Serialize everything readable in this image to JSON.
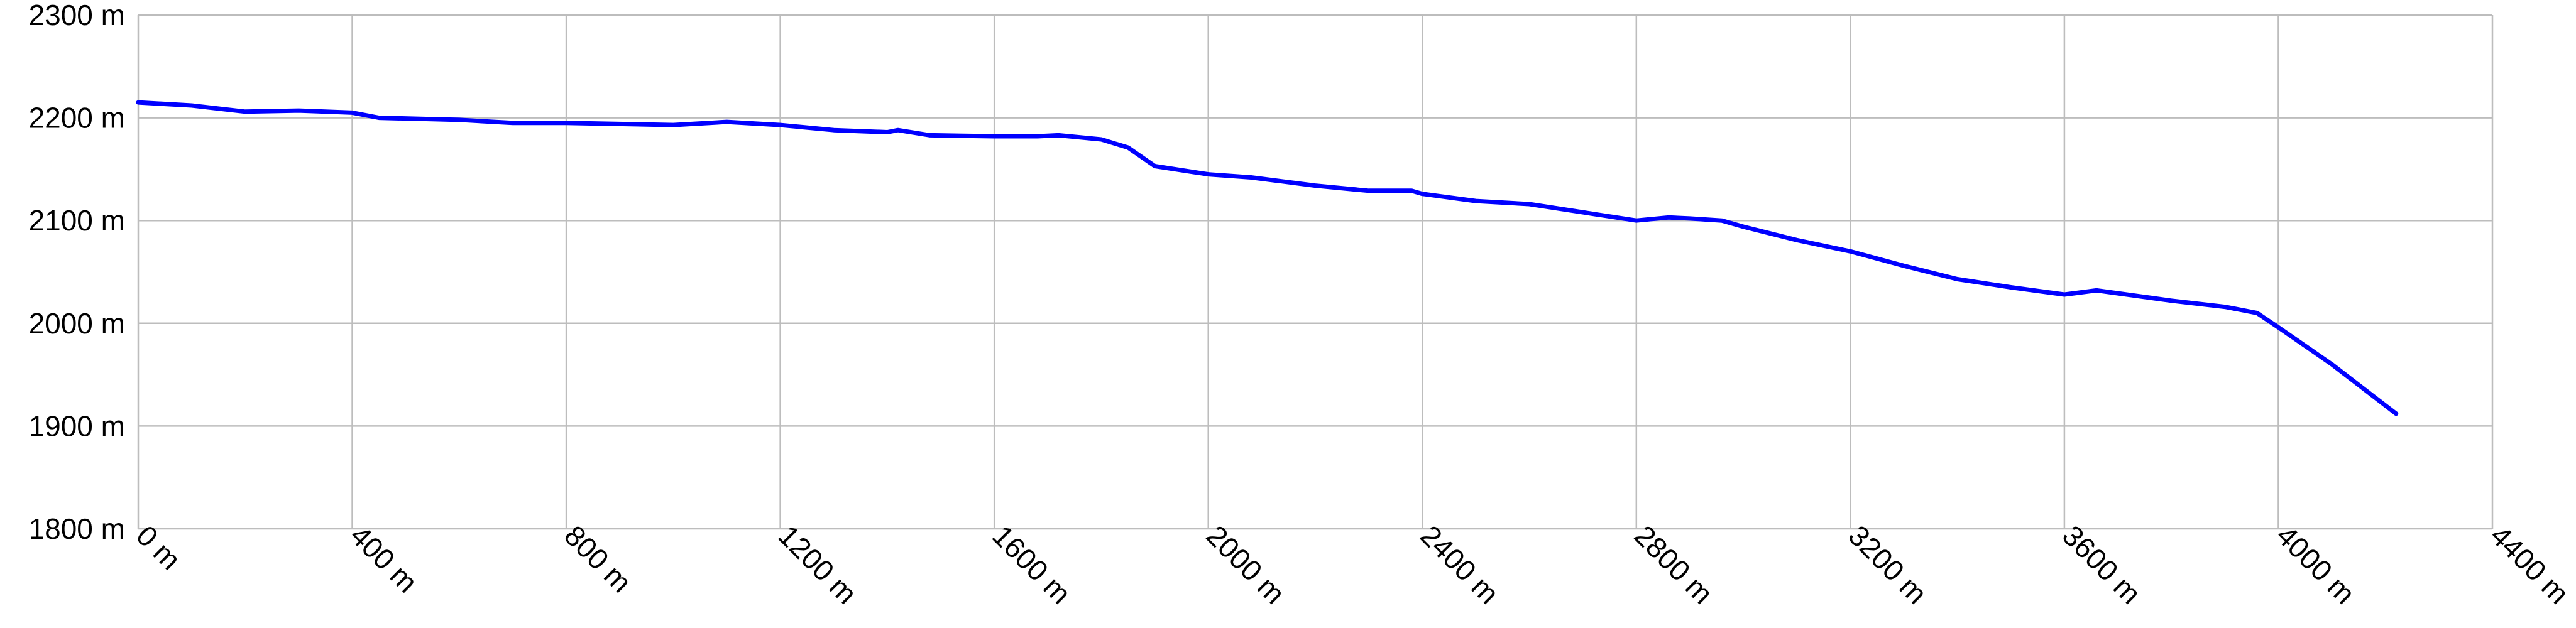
{
  "chart_data": {
    "type": "line",
    "color": "#0000ff",
    "grid": true,
    "x": [
      0,
      100,
      200,
      300,
      400,
      450,
      600,
      700,
      800,
      1000,
      1100,
      1200,
      1300,
      1400,
      1420,
      1480,
      1600,
      1680,
      1720,
      1800,
      1850,
      1900,
      2000,
      2080,
      2200,
      2300,
      2380,
      2400,
      2500,
      2600,
      2700,
      2800,
      2860,
      2900,
      2960,
      3000,
      3100,
      3200,
      3300,
      3400,
      3500,
      3600,
      3660,
      3800,
      3900,
      3960,
      4000,
      4100,
      4220
    ],
    "values": [
      2215,
      2212,
      2206,
      2207,
      2205,
      2200,
      2198,
      2195,
      2195,
      2193,
      2196,
      2193,
      2188,
      2186,
      2188,
      2183,
      2182,
      2182,
      2183,
      2179,
      2171,
      2153,
      2145,
      2142,
      2134,
      2129,
      2129,
      2126,
      2119,
      2116,
      2108,
      2100,
      2103,
      2102,
      2100,
      2094,
      2081,
      2070,
      2056,
      2043,
      2035,
      2028,
      2032,
      2022,
      2016,
      2010,
      1996,
      1960,
      1912
    ],
    "xlim": [
      0,
      4400
    ],
    "ylim": [
      1800,
      2300
    ],
    "xticks": [
      {
        "value": 0,
        "label": "0 m"
      },
      {
        "value": 400,
        "label": "400 m"
      },
      {
        "value": 800,
        "label": "800 m"
      },
      {
        "value": 1200,
        "label": "1200 m"
      },
      {
        "value": 1600,
        "label": "1600 m"
      },
      {
        "value": 2000,
        "label": "2000 m"
      },
      {
        "value": 2400,
        "label": "2400 m"
      },
      {
        "value": 2800,
        "label": "2800 m"
      },
      {
        "value": 3200,
        "label": "3200 m"
      },
      {
        "value": 3600,
        "label": "3600 m"
      },
      {
        "value": 4000,
        "label": "4000 m"
      },
      {
        "value": 4400,
        "label": "4400 m"
      }
    ],
    "yticks": [
      {
        "value": 1800,
        "label": "1800 m"
      },
      {
        "value": 1900,
        "label": "1900 m"
      },
      {
        "value": 2000,
        "label": "2000 m"
      },
      {
        "value": 2100,
        "label": "2100 m"
      },
      {
        "value": 2200,
        "label": "2200 m"
      },
      {
        "value": 2300,
        "label": "2300 m"
      }
    ]
  }
}
